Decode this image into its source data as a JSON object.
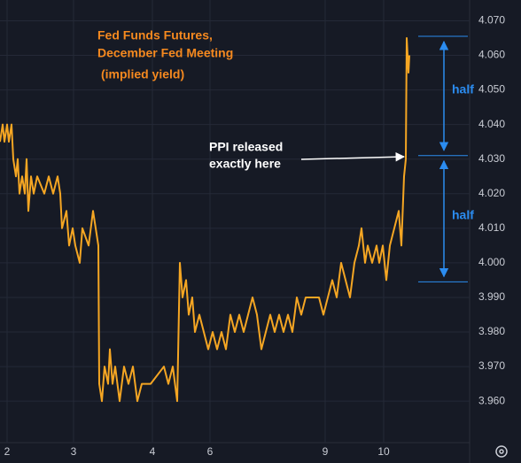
{
  "chart_data": {
    "type": "line",
    "title": [
      "Fed Funds Futures,",
      "December Fed Meeting"
    ],
    "subtitle": "(implied yield)",
    "annotations": [
      [
        "PPI released",
        "exactly here"
      ],
      "half",
      "half"
    ],
    "reference_lines": [
      4.0655,
      4.031,
      3.9945
    ],
    "series": [
      {
        "color": "#f5a623",
        "x": [
          0,
          0.3,
          0.5,
          0.8,
          1,
          1.3,
          1.5,
          1.8,
          2,
          2.2,
          2.5,
          2.8,
          3,
          3.2,
          3.5,
          3.8,
          4.2,
          5,
          5.5,
          6,
          6.5,
          6.8,
          7,
          7.5,
          7.8,
          8.2,
          8.5,
          9,
          9.3,
          10,
          10.5,
          10.8,
          11.1,
          11.2,
          11.5,
          11.8,
          12.2,
          12.4,
          12.7,
          13,
          13.5,
          14,
          14.5,
          15,
          15.5,
          16,
          17,
          18.5,
          19,
          19.5,
          20,
          20.3,
          20.6,
          21,
          21.3,
          21.7,
          22,
          22.5,
          23,
          23.5,
          24,
          24.5,
          25,
          25.5,
          26,
          26.5,
          27,
          27.5,
          28,
          28.5,
          29,
          29.5,
          30,
          30.5,
          31,
          31.5,
          32,
          32.5,
          33,
          33.5,
          34,
          34.5,
          36,
          36.5,
          37,
          37.5,
          38,
          38.5,
          39,
          39.5,
          40,
          40.5,
          40.8,
          41.2,
          41.5,
          42,
          42.5,
          42.8,
          43.2,
          43.6,
          44,
          44.5,
          45,
          45.3,
          45.6,
          45.8,
          45.9,
          46.1,
          46.2
        ],
        "values": [
          4.035,
          4.04,
          4.035,
          4.04,
          4.035,
          4.04,
          4.03,
          4.025,
          4.03,
          4.02,
          4.025,
          4.02,
          4.03,
          4.015,
          4.025,
          4.02,
          4.025,
          4.02,
          4.025,
          4.02,
          4.025,
          4.02,
          4.01,
          4.015,
          4.005,
          4.01,
          4.005,
          4,
          4.01,
          4.005,
          4.015,
          4.01,
          4.005,
          3.965,
          3.96,
          3.97,
          3.965,
          3.975,
          3.965,
          3.97,
          3.96,
          3.97,
          3.965,
          3.97,
          3.96,
          3.965,
          3.965,
          3.97,
          3.965,
          3.97,
          3.96,
          4,
          3.99,
          3.995,
          3.985,
          3.99,
          3.98,
          3.985,
          3.98,
          3.975,
          3.98,
          3.975,
          3.98,
          3.975,
          3.985,
          3.98,
          3.985,
          3.98,
          3.985,
          3.99,
          3.985,
          3.975,
          3.98,
          3.985,
          3.98,
          3.985,
          3.98,
          3.985,
          3.98,
          3.99,
          3.985,
          3.99,
          3.99,
          3.985,
          3.99,
          3.995,
          3.99,
          4,
          3.995,
          3.99,
          4,
          4.005,
          4.01,
          4,
          4.005,
          4,
          4.005,
          4,
          4.005,
          3.995,
          4.005,
          4.01,
          4.015,
          4.005,
          4.025,
          4.03,
          4.065,
          4.055,
          4.06
        ]
      }
    ],
    "xlim": [
      0,
      53
    ],
    "xticks": [
      {
        "value": 0.8,
        "label": "2"
      },
      {
        "value": 8.3,
        "label": "3"
      },
      {
        "value": 17.2,
        "label": "4"
      },
      {
        "value": 23.7,
        "label": "6"
      },
      {
        "value": 36.7,
        "label": "9"
      },
      {
        "value": 43.3,
        "label": "10"
      }
    ],
    "ylim": [
      3.948,
      4.076
    ],
    "yticks": [
      {
        "value": 3.96,
        "label": "3.960"
      },
      {
        "value": 3.97,
        "label": "3.970"
      },
      {
        "value": 3.98,
        "label": "3.980"
      },
      {
        "value": 3.99,
        "label": "3.990"
      },
      {
        "value": 4,
        "label": "4.000"
      },
      {
        "value": 4.01,
        "label": "4.010"
      },
      {
        "value": 4.02,
        "label": "4.020"
      },
      {
        "value": 4.03,
        "label": "4.030"
      },
      {
        "value": 4.04,
        "label": "4.040"
      },
      {
        "value": 4.05,
        "label": "4.050"
      },
      {
        "value": 4.06,
        "label": "4.060"
      },
      {
        "value": 4.07,
        "label": "4.070"
      }
    ],
    "grid": true
  }
}
